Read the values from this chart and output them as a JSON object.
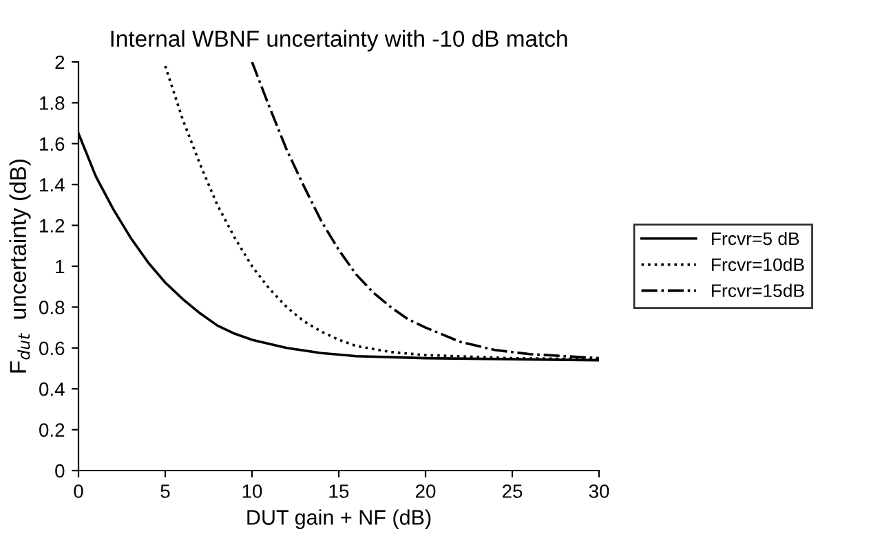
{
  "chart_data": {
    "type": "line",
    "title": "Internal WBNF uncertainty with -10 dB match",
    "xlabel": "DUT gain + NF (dB)",
    "ylabel": "F$_{dut}$  uncertainty (dB)",
    "xlim": [
      0,
      30
    ],
    "xticks": [
      0,
      5,
      10,
      15,
      20,
      25,
      30
    ],
    "ylim": [
      0,
      2
    ],
    "yticks": [
      0,
      0.2,
      0.4,
      0.6,
      0.8,
      1,
      1.2,
      1.4,
      1.6,
      1.8,
      2
    ],
    "grid": false,
    "legend": "right",
    "marker": "none",
    "series": [
      {
        "name": "Frcvr=5 dB",
        "color": "#000000",
        "line_style": "solid",
        "x": [
          0,
          1,
          2,
          3,
          4,
          5,
          6,
          7,
          8,
          9,
          10,
          12,
          14,
          16,
          18,
          20,
          25,
          30
        ],
        "values": [
          1.65,
          1.44,
          1.28,
          1.14,
          1.02,
          0.92,
          0.84,
          0.77,
          0.71,
          0.67,
          0.64,
          0.6,
          0.575,
          0.56,
          0.555,
          0.55,
          0.545,
          0.54
        ]
      },
      {
        "name": "Frcvr=10dB",
        "color": "#000000",
        "line_style": "dotted",
        "x": [
          5,
          6,
          7,
          8,
          9,
          10,
          11,
          12,
          13,
          14,
          15,
          16,
          18,
          20,
          25,
          30
        ],
        "values": [
          1.98,
          1.72,
          1.5,
          1.3,
          1.14,
          1.0,
          0.89,
          0.8,
          0.73,
          0.68,
          0.64,
          0.61,
          0.58,
          0.565,
          0.55,
          0.545
        ]
      },
      {
        "name": "Frcvr=15dB",
        "color": "#000000",
        "line_style": "dashdot",
        "x": [
          10,
          11,
          12,
          13,
          14,
          15,
          16,
          17,
          18,
          19,
          20,
          22,
          24,
          26,
          28,
          30
        ],
        "values": [
          2.0,
          1.78,
          1.57,
          1.39,
          1.22,
          1.08,
          0.96,
          0.87,
          0.8,
          0.74,
          0.7,
          0.63,
          0.59,
          0.57,
          0.56,
          0.55
        ]
      }
    ]
  }
}
